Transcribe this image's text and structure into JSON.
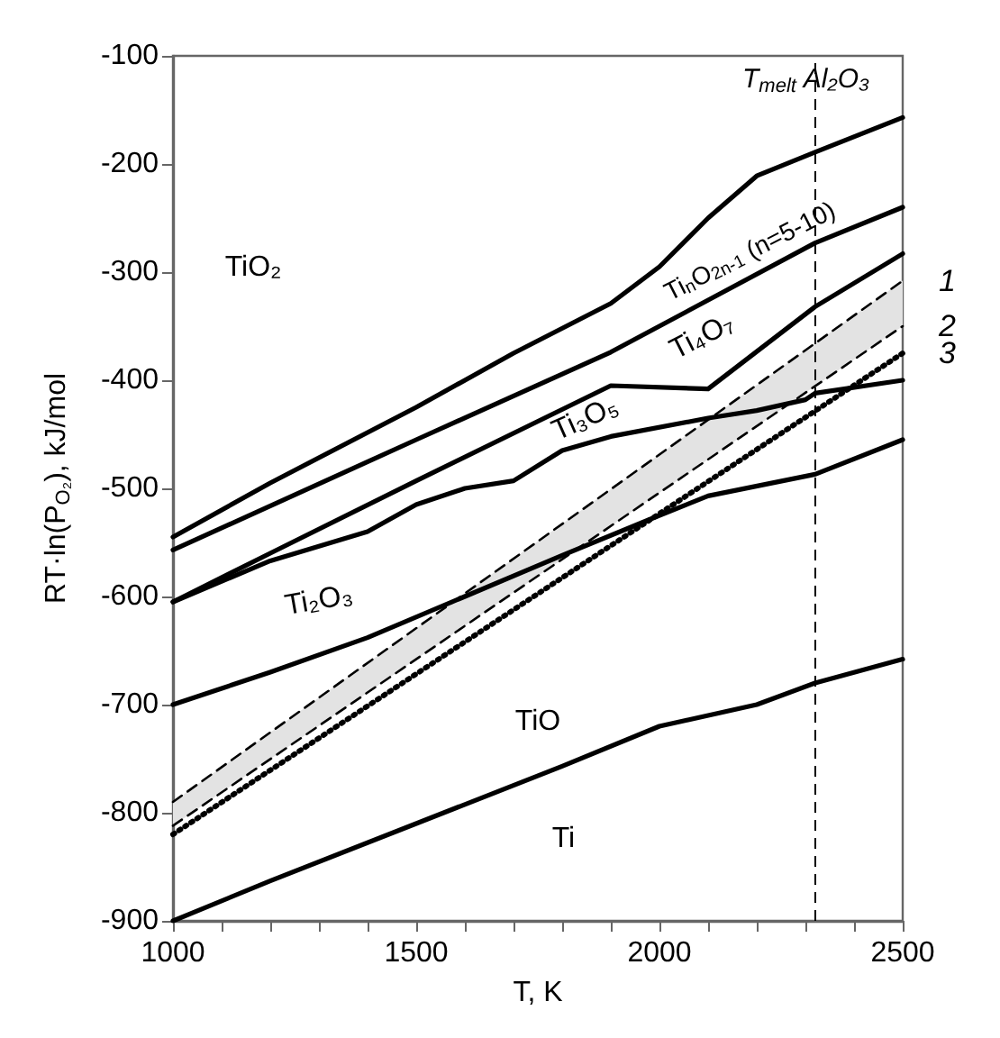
{
  "chart_data": {
    "type": "line",
    "xlabel": "T, K",
    "ylabel": "RT·ln(P$_{O₂}$), kJ/mol",
    "xlim": [
      1000,
      2500
    ],
    "ylim": [
      -900,
      -100
    ],
    "xticks": [
      1000,
      {
        "value": 1100,
        "label": null
      },
      {
        "value": 1200,
        "label": null
      },
      {
        "value": 1300,
        "label": null
      },
      {
        "value": 1400,
        "label": null
      },
      1500,
      {
        "value": 1600,
        "label": null
      },
      {
        "value": 1700,
        "label": null
      },
      {
        "value": 1800,
        "label": null
      },
      {
        "value": 1900,
        "label": null
      },
      2000,
      {
        "value": 2100,
        "label": null
      },
      {
        "value": 2200,
        "label": null
      },
      {
        "value": 2300,
        "label": null
      },
      {
        "value": 2400,
        "label": null
      },
      2500
    ],
    "yticks": [
      -900,
      -800,
      -700,
      -600,
      -500,
      -400,
      -300,
      -200,
      -100
    ],
    "grid": false,
    "legend": false,
    "marker": "none",
    "series": [
      {
        "color": "#000000",
        "line_style": "solid",
        "x": [
          1000,
          1200,
          1500,
          1700,
          1900,
          2000,
          2100,
          2200,
          2320,
          2500
        ],
        "values": [
          -545,
          -495,
          -425,
          -375,
          -329,
          -295,
          -250,
          -211,
          -189,
          -157
        ]
      },
      {
        "color": "#000000",
        "line_style": "solid",
        "x": [
          1000,
          1500,
          1900,
          2320,
          2500
        ],
        "values": [
          -557,
          -455,
          -374,
          -273,
          -240
        ]
      },
      {
        "color": "#000000",
        "line_style": "solid",
        "x": [
          1000,
          1200,
          1500,
          1900,
          2100,
          2320,
          2500
        ],
        "values": [
          -605,
          -560,
          -493,
          -405,
          -408,
          -332,
          -283
        ]
      },
      {
        "color": "#000000",
        "line_style": "solid",
        "x": [
          1000,
          1200,
          1400,
          1500,
          1600,
          1700,
          1800,
          1900,
          2100,
          2200,
          2300,
          2320,
          2500
        ],
        "values": [
          -605,
          -567,
          -540,
          -515,
          -500,
          -493,
          -465,
          -452,
          -435,
          -428,
          -418,
          -412,
          -400
        ]
      },
      {
        "color": "#000000",
        "line_style": "solid",
        "x": [
          1000,
          1200,
          1400,
          1600,
          1800,
          2000,
          2100,
          2320,
          2500
        ],
        "values": [
          -700,
          -670,
          -638,
          -600,
          -562,
          -525,
          -507,
          -487,
          -455
        ]
      },
      {
        "color": "#000000",
        "line_style": "solid",
        "x": [
          1000,
          1200,
          1500,
          1800,
          2000,
          2200,
          2320,
          2500
        ],
        "values": [
          -900,
          -863,
          -810,
          -757,
          -720,
          -700,
          -680,
          -658
        ]
      },
      {
        "name": "1",
        "color": "#000000",
        "line_style": "dashed",
        "x": [
          1000,
          2500
        ],
        "values": [
          -790,
          -308
        ],
        "lower": [
          -812,
          -350
        ],
        "upper": [
          -790,
          -308
        ]
      },
      {
        "name": "2",
        "color": "#000000",
        "line_style": "dashed",
        "x": [
          1000,
          2500
        ],
        "values": [
          -812,
          -350
        ]
      },
      {
        "name": "3",
        "color": "#000000",
        "line_style": "dotted",
        "x": [
          1000,
          2500
        ],
        "values": [
          -820,
          -375
        ]
      }
    ],
    "ref_lines": [
      {
        "axis": "x",
        "value": 2320,
        "label": "T$_{melt}$ Al₂O₃",
        "line_style": "dashed",
        "color": "#000000"
      }
    ],
    "annotations": [
      "TiO₂",
      "Ti$_{n}$O$_{2n-1}$ (n=5-10)",
      "Ti₄O₇",
      "Ti₃O₅",
      "Ti₂O₃",
      "TiO",
      "Ti"
    ]
  }
}
